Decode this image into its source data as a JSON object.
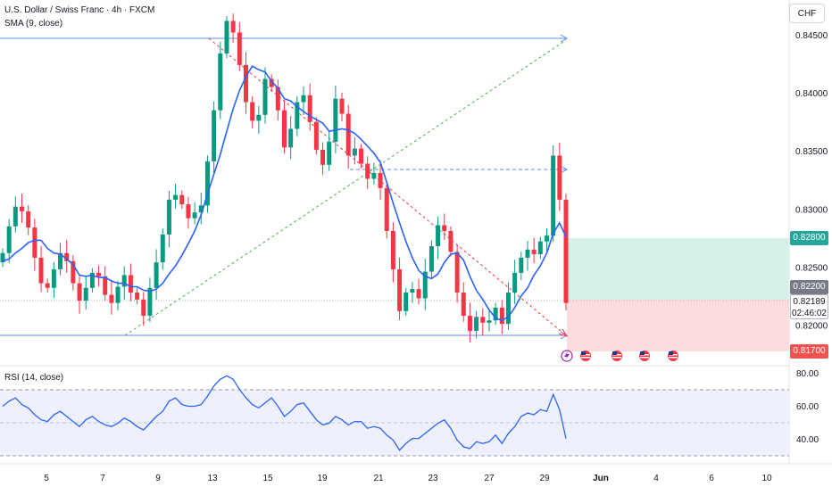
{
  "header": {
    "title": "U.S. Dollar / Swiss Franc · 4h · FXCM",
    "indicator": "SMA (9, close)",
    "currency_button": "CHF"
  },
  "rsi_pane": {
    "label": "RSI (14, close)",
    "ticks": [
      "80.00",
      "60.00",
      "40.00"
    ]
  },
  "price_axis": {
    "ticks": [
      "0.84500",
      "0.84000",
      "0.83500",
      "0.83000",
      "0.82500",
      "0.82000"
    ],
    "tags": {
      "target": "0.82800",
      "entry": "0.82200",
      "last_price": "0.82189",
      "countdown": "02:46:02",
      "stop": "0.81700"
    }
  },
  "time_axis": {
    "labels": [
      "5",
      "7",
      "9",
      "13",
      "15",
      "19",
      "21",
      "23",
      "27",
      "29",
      "Jun",
      "4",
      "6",
      "10"
    ]
  },
  "colors": {
    "bull": "#089981",
    "bear": "#f23645",
    "sma": "#2962ff",
    "rsi": "#2962ff",
    "drawing": "#5b8def",
    "target_zone": "#d6f1ea",
    "stop_zone": "#fcdcdc"
  },
  "chart_data": [
    {
      "type": "candlestick",
      "title": "U.S. Dollar / Swiss Franc · 4h · FXCM",
      "ylim": [
        0.8165,
        0.848
      ],
      "y_ticks": [
        0.845,
        0.84,
        0.835,
        0.83,
        0.825,
        0.82
      ],
      "x_tick_labels": [
        "5",
        "7",
        "9",
        "13",
        "15",
        "19",
        "21",
        "23",
        "27",
        "29",
        "Jun",
        "4",
        "6",
        "10"
      ],
      "bars": 89,
      "close": [
        0.8262,
        0.8285,
        0.8302,
        0.8298,
        0.8284,
        0.8258,
        0.8236,
        0.8232,
        0.8248,
        0.8262,
        0.8255,
        0.8236,
        0.8221,
        0.8232,
        0.8245,
        0.8242,
        0.8226,
        0.8219,
        0.8233,
        0.8243,
        0.8228,
        0.8222,
        0.8208,
        0.8232,
        0.8254,
        0.8278,
        0.8308,
        0.8312,
        0.8304,
        0.8292,
        0.8297,
        0.8303,
        0.8341,
        0.8385,
        0.8434,
        0.8462,
        0.8452,
        0.8424,
        0.8392,
        0.8376,
        0.8381,
        0.8412,
        0.8405,
        0.8385,
        0.8353,
        0.8369,
        0.8392,
        0.8398,
        0.8375,
        0.8351,
        0.8338,
        0.8358,
        0.8395,
        0.8382,
        0.8346,
        0.8352,
        0.8339,
        0.8326,
        0.8331,
        0.8318,
        0.8281,
        0.8248,
        0.8212,
        0.8228,
        0.8231,
        0.8223,
        0.8246,
        0.8268,
        0.8286,
        0.8281,
        0.8263,
        0.8228,
        0.8208,
        0.8195,
        0.8207,
        0.8202,
        0.8204,
        0.8215,
        0.8201,
        0.8228,
        0.8245,
        0.8258,
        0.8265,
        0.8261,
        0.8272,
        0.8277,
        0.8346,
        0.8308,
        0.8219
      ],
      "sma": {
        "name": "SMA (9, close)",
        "values": [
          0.8255,
          0.8257,
          0.8262,
          0.8266,
          0.8271,
          0.8273,
          0.8273,
          0.8266,
          0.8262,
          0.8261,
          0.8257,
          0.8252,
          0.8243,
          0.8242,
          0.8243,
          0.8241,
          0.8241,
          0.8238,
          0.8236,
          0.8236,
          0.8233,
          0.8233,
          0.823,
          0.8229,
          0.8231,
          0.8236,
          0.8244,
          0.8251,
          0.826,
          0.827,
          0.8281,
          0.8295,
          0.8313,
          0.833,
          0.8347,
          0.8367,
          0.8386,
          0.8402,
          0.8414,
          0.8423,
          0.842,
          0.8418,
          0.841,
          0.8404,
          0.8395,
          0.8393,
          0.8388,
          0.8384,
          0.838,
          0.8377,
          0.8374,
          0.8367,
          0.8368,
          0.8369,
          0.8368,
          0.8365,
          0.836,
          0.8354,
          0.8348,
          0.834,
          0.8323,
          0.8305,
          0.8288,
          0.8272,
          0.8258,
          0.8247,
          0.8242,
          0.824,
          0.8244,
          0.8254,
          0.8261,
          0.8262,
          0.8256,
          0.8242,
          0.823,
          0.8222,
          0.8213,
          0.8206,
          0.8204,
          0.8207,
          0.8215,
          0.8225,
          0.8232,
          0.8243,
          0.8251,
          0.8262,
          0.8279,
          0.8288,
          0.8276
        ]
      }
    },
    {
      "type": "line",
      "title": "RSI (14, close)",
      "ylim": [
        27,
        85
      ],
      "y_ticks": [
        80,
        60,
        40
      ],
      "bands": [
        70,
        50,
        30
      ],
      "series": [
        {
          "name": "RSI (14, close)",
          "values": [
            61,
            64,
            66,
            62,
            60,
            56,
            53,
            52,
            56,
            58,
            55,
            52,
            49,
            53,
            55,
            52,
            50,
            49,
            51,
            54,
            52,
            49,
            47,
            51,
            55,
            58,
            64,
            66,
            62,
            61,
            61,
            62,
            67,
            73,
            77,
            79,
            77,
            71,
            66,
            62,
            60,
            63,
            66,
            61,
            55,
            58,
            62,
            63,
            58,
            53,
            50,
            51,
            55,
            53,
            50,
            52,
            52,
            48,
            49,
            48,
            44,
            41,
            35,
            39,
            42,
            42,
            45,
            48,
            51,
            53,
            48,
            41,
            37,
            36,
            40,
            39,
            40,
            44,
            39,
            45,
            49,
            55,
            57,
            56,
            59,
            58,
            68,
            59,
            42
          ]
        }
      ]
    }
  ]
}
